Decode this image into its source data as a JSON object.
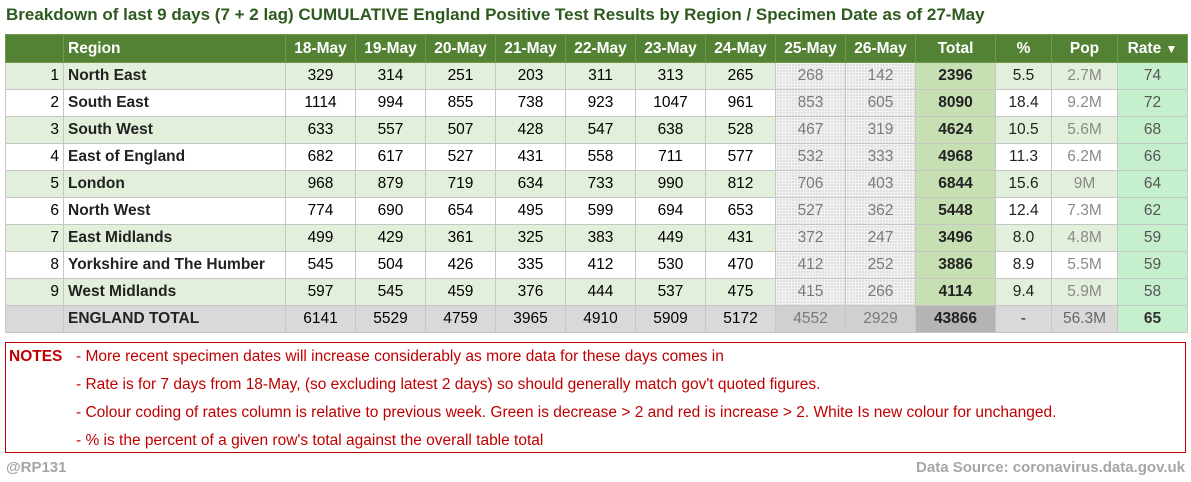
{
  "title": "Breakdown of last 9 days (7 + 2 lag) CUMULATIVE England Positive Test Results by Region / Specimen Date as of 27-May",
  "headers": {
    "region": "Region",
    "days": [
      "18-May",
      "19-May",
      "20-May",
      "21-May",
      "22-May",
      "23-May",
      "24-May",
      "25-May",
      "26-May"
    ],
    "total": "Total",
    "pct": "%",
    "pop": "Pop",
    "rate": "Rate",
    "rate_filter_icon": "▼"
  },
  "rows": [
    {
      "rank": "1",
      "region": "North East",
      "days": [
        "329",
        "314",
        "251",
        "203",
        "311",
        "313",
        "265",
        "268",
        "142"
      ],
      "total": "2396",
      "pct": "5.5",
      "pop": "2.7M",
      "rate": "74"
    },
    {
      "rank": "2",
      "region": "South East",
      "days": [
        "1114",
        "994",
        "855",
        "738",
        "923",
        "1047",
        "961",
        "853",
        "605"
      ],
      "total": "8090",
      "pct": "18.4",
      "pop": "9.2M",
      "rate": "72"
    },
    {
      "rank": "3",
      "region": "South West",
      "days": [
        "633",
        "557",
        "507",
        "428",
        "547",
        "638",
        "528",
        "467",
        "319"
      ],
      "total": "4624",
      "pct": "10.5",
      "pop": "5.6M",
      "rate": "68"
    },
    {
      "rank": "4",
      "region": "East of England",
      "days": [
        "682",
        "617",
        "527",
        "431",
        "558",
        "711",
        "577",
        "532",
        "333"
      ],
      "total": "4968",
      "pct": "11.3",
      "pop": "6.2M",
      "rate": "66"
    },
    {
      "rank": "5",
      "region": "London",
      "days": [
        "968",
        "879",
        "719",
        "634",
        "733",
        "990",
        "812",
        "706",
        "403"
      ],
      "total": "6844",
      "pct": "15.6",
      "pop": "9M",
      "rate": "64"
    },
    {
      "rank": "6",
      "region": "North West",
      "days": [
        "774",
        "690",
        "654",
        "495",
        "599",
        "694",
        "653",
        "527",
        "362"
      ],
      "total": "5448",
      "pct": "12.4",
      "pop": "7.3M",
      "rate": "62"
    },
    {
      "rank": "7",
      "region": "East Midlands",
      "days": [
        "499",
        "429",
        "361",
        "325",
        "383",
        "449",
        "431",
        "372",
        "247"
      ],
      "total": "3496",
      "pct": "8.0",
      "pop": "4.8M",
      "rate": "59"
    },
    {
      "rank": "8",
      "region": "Yorkshire and The Humber",
      "days": [
        "545",
        "504",
        "426",
        "335",
        "412",
        "530",
        "470",
        "412",
        "252"
      ],
      "total": "3886",
      "pct": "8.9",
      "pop": "5.5M",
      "rate": "59"
    },
    {
      "rank": "9",
      "region": "West Midlands",
      "days": [
        "597",
        "545",
        "459",
        "376",
        "444",
        "537",
        "475",
        "415",
        "266"
      ],
      "total": "4114",
      "pct": "9.4",
      "pop": "5.9M",
      "rate": "58"
    }
  ],
  "england_total": {
    "label": "ENGLAND TOTAL",
    "days": [
      "6141",
      "5529",
      "4759",
      "3965",
      "4910",
      "5909",
      "5172",
      "4552",
      "2929"
    ],
    "total": "43866",
    "pct": "-",
    "pop": "56.3M",
    "rate": "65"
  },
  "notes": {
    "header": "NOTES",
    "lines": [
      "- More recent specimen dates will increase considerably as more data for these days comes in",
      "- Rate is for 7 days from 18-May, (so excluding latest 2 days) so should generally match gov't quoted figures.",
      "- Colour coding of rates column is relative to previous week. Green is decrease > 2 and red is increase > 2. White Is new colour for unchanged.",
      "- % is the percent of a given row's total against the overall table total"
    ]
  },
  "footer": {
    "author": "@RP131",
    "source": "Data Source: coronavirus.data.gov.uk"
  },
  "colors": {
    "header_bg": "#548235",
    "band_green": "#e2efda",
    "total_col": "#c6e0b4",
    "rate_green": "#c6efce",
    "notes_red": "#c00000",
    "title_green": "#2f5a1f"
  }
}
